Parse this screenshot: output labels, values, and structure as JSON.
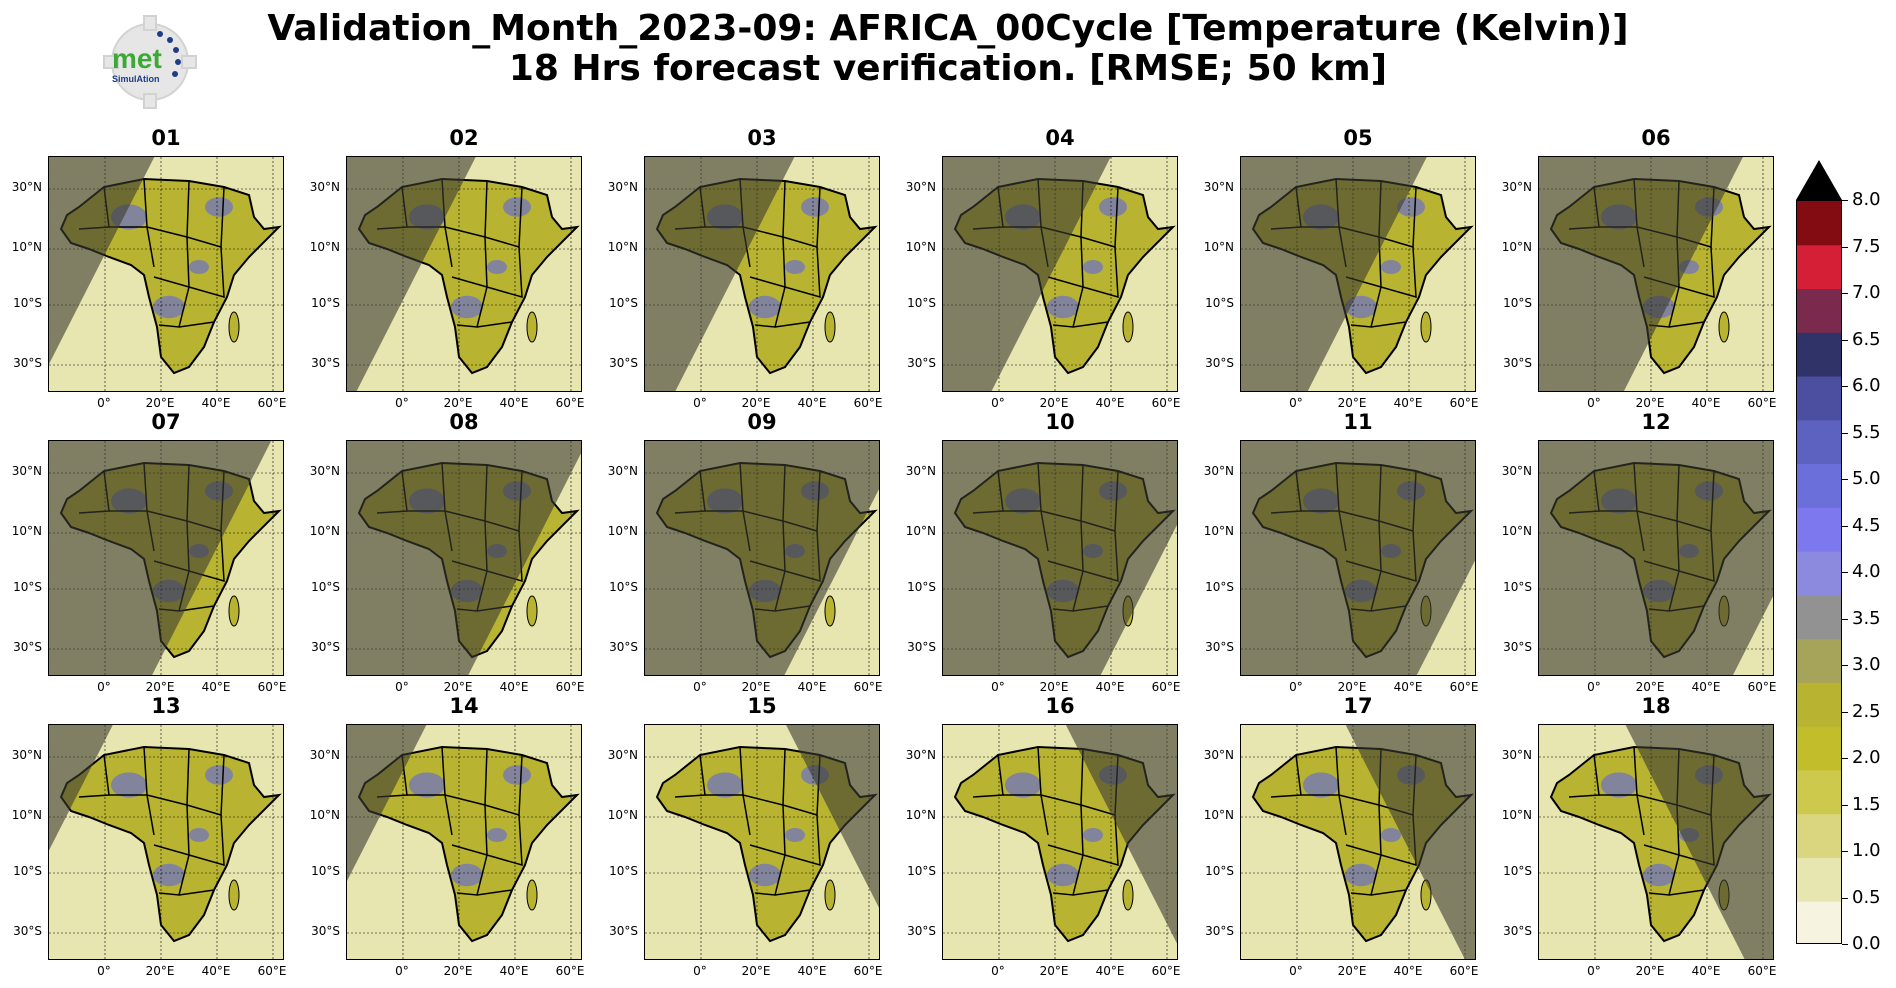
{
  "header": {
    "title_line1": "Validation_Month_2023-09: AFRICA_00Cycle [Temperature (Kelvin)]",
    "title_line2": "18 Hrs forecast verification.  [RMSE; 50 km]"
  },
  "logo": {
    "text": "met",
    "subtext": "SimulAtion"
  },
  "colors": {
    "night_shade": "#3a3a32",
    "land_base": "#b8b431",
    "sea_low": "#e8e6b0",
    "high_error": "#6b6fc9"
  },
  "chart_data": {
    "type": "heatmap",
    "panels": [
      "01",
      "02",
      "03",
      "04",
      "05",
      "06",
      "07",
      "08",
      "09",
      "10",
      "11",
      "12",
      "13",
      "14",
      "15",
      "16",
      "17",
      "18"
    ],
    "lat_ticks": [
      "30°N",
      "10°N",
      "10°S",
      "30°S"
    ],
    "lon_ticks": [
      "0°",
      "20°E",
      "40°E",
      "60°E"
    ],
    "colorbar": {
      "levels": [
        "0.0",
        "0.5",
        "1.0",
        "1.5",
        "2.0",
        "2.5",
        "3.0",
        "3.5",
        "4.0",
        "4.5",
        "5.0",
        "5.5",
        "6.0",
        "6.5",
        "7.0",
        "7.5",
        "8.0"
      ],
      "colors": [
        "#f6f4e0",
        "#e8e6b0",
        "#d9d67f",
        "#cdc94c",
        "#c1bd2b",
        "#b8b431",
        "#a6a35a",
        "#929292",
        "#8b8ade",
        "#7d78ee",
        "#6b6fd9",
        "#5d61c0",
        "#4c4fa0",
        "#2f3368",
        "#7a2a4c",
        "#d41f36",
        "#820c12"
      ],
      "extend": "max",
      "extend_color": "#000000"
    },
    "shade_offsets": [
      -1.4,
      -0.95,
      -0.55,
      -0.2,
      0.15,
      0.5,
      0.85,
      1.2,
      1.55,
      1.9,
      2.25,
      2.6,
      -2.2,
      -1.9,
      1.6,
      1.25,
      0.9,
      0.55
    ]
  }
}
